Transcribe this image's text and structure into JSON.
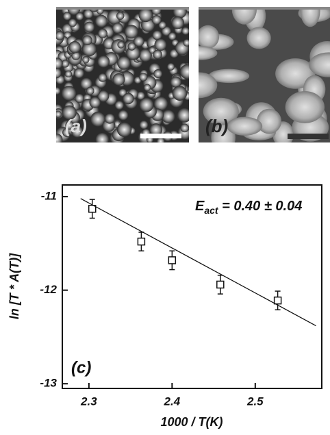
{
  "chart_data": {
    "type": "scatter",
    "panel_labels": [
      "(a)",
      "(b)"
    ],
    "panel_label": "(c)",
    "annotation": {
      "symbol": "E",
      "subscript": "act",
      "text": " = 0.40 ± 0.04"
    },
    "xlabel": "1000 / T(K)",
    "ylabel": "ln [T * A(T)]",
    "xlim": [
      2.268,
      2.58
    ],
    "ylim": [
      -13.05,
      -10.875
    ],
    "xticks": [
      2.3,
      2.4,
      2.5
    ],
    "yticks": [
      -13,
      -12,
      -11
    ],
    "series": [
      {
        "x": [
          2.304,
          2.363,
          2.4,
          2.458,
          2.527
        ],
        "values": [
          -11.13,
          -11.48,
          -11.68,
          -11.94,
          -12.11
        ],
        "errors": [
          0.1,
          0.1,
          0.1,
          0.1,
          0.1
        ],
        "color": "#111111"
      },
      {
        "type": "line",
        "x": [
          2.29,
          2.573
        ],
        "values": [
          -11.02,
          -12.38
        ],
        "color": "#111111"
      }
    ]
  }
}
